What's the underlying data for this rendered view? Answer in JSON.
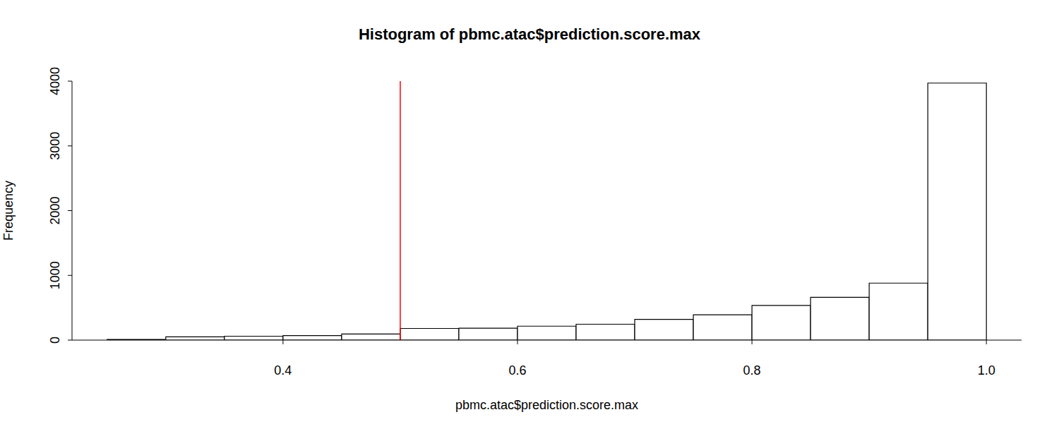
{
  "chart_data": {
    "type": "histogram",
    "title": "Histogram of pbmc.atac$prediction.score.max",
    "x_label": "pbmc.atac$prediction.score.max",
    "y_label": "Frequency",
    "bins": [
      0.25,
      0.3,
      0.35,
      0.4,
      0.45,
      0.5,
      0.55,
      0.6,
      0.65,
      0.7,
      0.75,
      0.8,
      0.85,
      0.9,
      0.95,
      1.0
    ],
    "values": [
      10,
      50,
      60,
      70,
      95,
      180,
      185,
      215,
      245,
      320,
      390,
      535,
      660,
      880,
      3970
    ],
    "color": "#ffffff",
    "xlim": [
      0.22,
      1.03
    ],
    "xticks": [
      0.4,
      0.6,
      0.8,
      {
        "value": 1.0,
        "label": "1.0"
      }
    ],
    "ylim": [
      0,
      4000
    ],
    "yticks": [
      0,
      1000,
      2000,
      3000,
      4000
    ],
    "grid": false,
    "reference_lines": [
      {
        "x": 0.5,
        "color": "#ff0000"
      }
    ]
  }
}
